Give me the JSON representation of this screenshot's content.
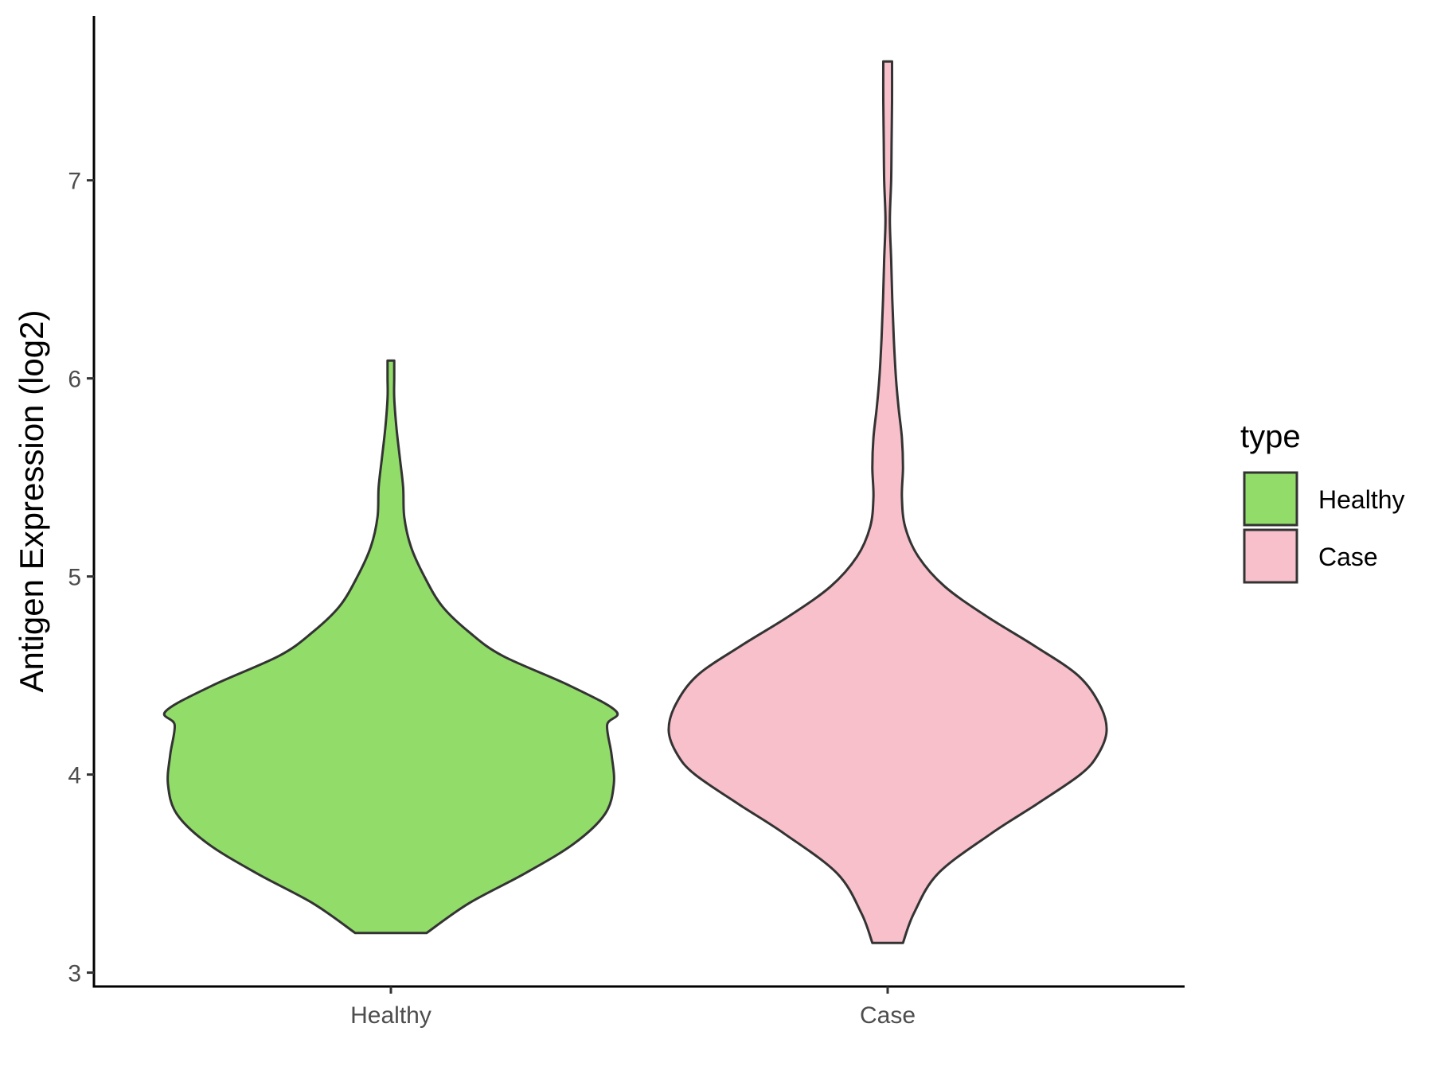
{
  "chart_data": {
    "type": "violin",
    "ylabel": "Antigen Expression (log2)",
    "xlabel": "",
    "categories": [
      "Healthy",
      "Case"
    ],
    "ylim": [
      2.93,
      7.83
    ],
    "yticks": [
      3,
      4,
      5,
      6,
      7
    ],
    "grid": false,
    "legend": {
      "title": "type",
      "position": "right",
      "entries": [
        {
          "label": "Healthy",
          "color": "#92dc6a"
        },
        {
          "label": "Case",
          "color": "#f7c0cb"
        }
      ]
    },
    "series": [
      {
        "name": "Healthy",
        "color": "#92dc6a",
        "min": 3.2,
        "max": 6.09,
        "density_profile": [
          [
            3.2,
            0.16
          ],
          [
            3.35,
            0.35
          ],
          [
            3.5,
            0.6
          ],
          [
            3.65,
            0.82
          ],
          [
            3.8,
            0.96
          ],
          [
            3.95,
            1.0
          ],
          [
            4.1,
            0.99
          ],
          [
            4.25,
            0.97
          ],
          [
            4.32,
            1.01
          ],
          [
            4.45,
            0.8
          ],
          [
            4.6,
            0.5
          ],
          [
            4.72,
            0.35
          ],
          [
            4.85,
            0.23
          ],
          [
            5.0,
            0.15
          ],
          [
            5.15,
            0.09
          ],
          [
            5.3,
            0.06
          ],
          [
            5.45,
            0.055
          ],
          [
            5.6,
            0.04
          ],
          [
            5.75,
            0.025
          ],
          [
            5.9,
            0.015
          ],
          [
            6.0,
            0.015
          ],
          [
            6.09,
            0.015
          ]
        ]
      },
      {
        "name": "Case",
        "color": "#f7c0cb",
        "min": 3.15,
        "max": 7.6,
        "density_profile": [
          [
            3.15,
            0.07
          ],
          [
            3.3,
            0.12
          ],
          [
            3.5,
            0.23
          ],
          [
            3.7,
            0.47
          ],
          [
            3.85,
            0.68
          ],
          [
            4.0,
            0.88
          ],
          [
            4.1,
            0.96
          ],
          [
            4.22,
            1.0
          ],
          [
            4.35,
            0.97
          ],
          [
            4.5,
            0.87
          ],
          [
            4.65,
            0.67
          ],
          [
            4.8,
            0.45
          ],
          [
            4.95,
            0.26
          ],
          [
            5.1,
            0.14
          ],
          [
            5.25,
            0.08
          ],
          [
            5.4,
            0.065
          ],
          [
            5.55,
            0.07
          ],
          [
            5.7,
            0.065
          ],
          [
            5.85,
            0.05
          ],
          [
            6.0,
            0.038
          ],
          [
            6.2,
            0.028
          ],
          [
            6.4,
            0.021
          ],
          [
            6.6,
            0.016
          ],
          [
            6.8,
            0.01
          ],
          [
            7.0,
            0.016
          ],
          [
            7.2,
            0.018
          ],
          [
            7.4,
            0.02
          ],
          [
            7.6,
            0.02
          ]
        ]
      }
    ]
  }
}
